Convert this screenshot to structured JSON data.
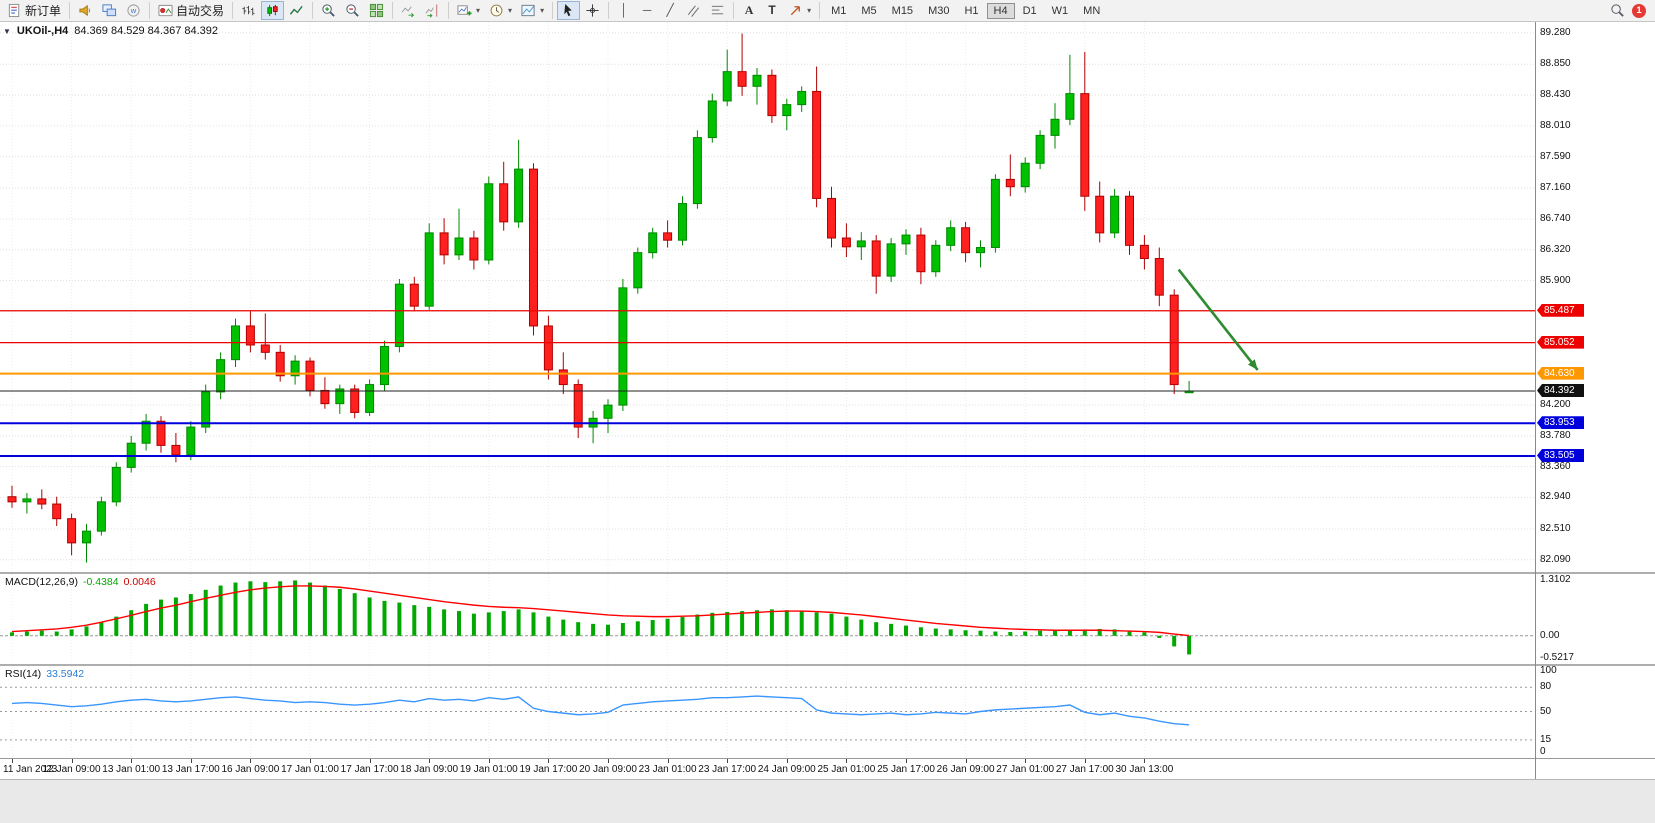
{
  "toolbar": {
    "new_order_label": "新订单",
    "auto_trading_label": "自动交易",
    "timeframes": [
      "M1",
      "M5",
      "M15",
      "M30",
      "H1",
      "H4",
      "D1",
      "W1",
      "MN"
    ],
    "active_timeframe": "H4",
    "notification_count": "1"
  },
  "chart": {
    "symbol_title": "UKOil-,H4",
    "ohlc_text": "84.369 84.529 84.367 84.392",
    "macd_name": "MACD(12,26,9)",
    "macd_value_main": "-0.4384",
    "macd_value_signal": "0.0046",
    "rsi_name": "RSI(14)",
    "rsi_value": "33.5942"
  },
  "chart_data": {
    "type": "candlestick",
    "symbol": "UKOil-",
    "timeframe": "H4",
    "current_bar": {
      "open": 84.369,
      "high": 84.529,
      "low": 84.367,
      "close": 84.392
    },
    "view": {
      "price_max": 89.4,
      "price_min": 81.95
    },
    "colors": {
      "up": "#00c000",
      "up_border": "#008800",
      "down": "#ff2020",
      "down_border": "#b00000",
      "macd_hist": "#00a800",
      "macd_signal": "#ff0000",
      "rsi": "#3a96ff"
    },
    "price_axis_labels": [
      "89.280",
      "88.850",
      "88.430",
      "88.010",
      "87.590",
      "87.160",
      "86.740",
      "86.320",
      "85.900",
      "84.200",
      "83.780",
      "83.360",
      "82.940",
      "82.510",
      "82.090"
    ],
    "price_gridlines": [
      89.28,
      88.85,
      88.43,
      88.01,
      87.59,
      87.16,
      86.74,
      86.32,
      85.9,
      85.48,
      85.05,
      84.63,
      84.2,
      83.78,
      83.36,
      82.94,
      82.51,
      82.09
    ],
    "hlines": [
      {
        "price": 85.487,
        "badge": "85.487",
        "color": "#ee0000",
        "width": 1.2
      },
      {
        "price": 85.052,
        "badge": "85.052",
        "color": "#ee0000",
        "width": 1.2
      },
      {
        "price": 84.63,
        "badge": "84.630",
        "color": "#ff9800",
        "width": 2
      },
      {
        "price": 83.953,
        "badge": "83.953",
        "color": "#0000dd",
        "width": 2
      },
      {
        "price": 83.505,
        "badge": "83.505",
        "color": "#0000dd",
        "width": 2
      }
    ],
    "current_price": 84.392,
    "current_badge": "84.392",
    "arrow": {
      "from_bar": 79.3,
      "from_price": 86.05,
      "to_bar": 84.6,
      "to_price": 84.68,
      "color": "#2e8b2e"
    },
    "time_labels": [
      "11 Jan 2023",
      "12 Jan 09:00",
      "13 Jan 01:00",
      "13 Jan 17:00",
      "16 Jan 09:00",
      "17 Jan 01:00",
      "17 Jan 17:00",
      "18 Jan 09:00",
      "19 Jan 01:00",
      "19 Jan 17:00",
      "20 Jan 09:00",
      "23 Jan 01:00",
      "23 Jan 17:00",
      "24 Jan 09:00",
      "25 Jan 01:00",
      "25 Jan 17:00",
      "26 Jan 09:00",
      "27 Jan 01:00",
      "27 Jan 17:00",
      "30 Jan 13:00"
    ],
    "candles": [
      [
        82.95,
        83.1,
        82.8,
        82.88
      ],
      [
        82.88,
        83.0,
        82.72,
        82.92
      ],
      [
        82.92,
        83.05,
        82.78,
        82.85
      ],
      [
        82.85,
        82.95,
        82.55,
        82.65
      ],
      [
        82.65,
        82.72,
        82.15,
        82.32
      ],
      [
        82.32,
        82.58,
        82.05,
        82.48
      ],
      [
        82.48,
        82.95,
        82.42,
        82.88
      ],
      [
        82.88,
        83.42,
        82.82,
        83.35
      ],
      [
        83.35,
        83.78,
        83.28,
        83.68
      ],
      [
        83.68,
        84.08,
        83.58,
        83.98
      ],
      [
        83.98,
        84.05,
        83.55,
        83.65
      ],
      [
        83.65,
        83.82,
        83.42,
        83.52
      ],
      [
        83.52,
        83.98,
        83.45,
        83.9
      ],
      [
        83.9,
        84.48,
        83.82,
        84.38
      ],
      [
        84.38,
        84.92,
        84.28,
        84.82
      ],
      [
        84.82,
        85.38,
        84.72,
        85.28
      ],
      [
        85.28,
        85.48,
        84.92,
        85.02
      ],
      [
        85.02,
        85.45,
        84.82,
        84.92
      ],
      [
        84.92,
        85.02,
        84.52,
        84.6
      ],
      [
        84.6,
        84.88,
        84.48,
        84.8
      ],
      [
        84.8,
        84.85,
        84.32,
        84.4
      ],
      [
        84.4,
        84.58,
        84.15,
        84.22
      ],
      [
        84.22,
        84.48,
        84.08,
        84.42
      ],
      [
        84.42,
        84.48,
        84.02,
        84.1
      ],
      [
        84.1,
        84.55,
        84.05,
        84.48
      ],
      [
        84.48,
        85.08,
        84.4,
        85.0
      ],
      [
        85.0,
        85.92,
        84.92,
        85.85
      ],
      [
        85.85,
        85.95,
        85.48,
        85.55
      ],
      [
        85.55,
        86.68,
        85.5,
        86.55
      ],
      [
        86.55,
        86.75,
        86.12,
        86.25
      ],
      [
        86.25,
        86.88,
        86.18,
        86.48
      ],
      [
        86.48,
        86.58,
        86.05,
        86.18
      ],
      [
        86.18,
        87.32,
        86.12,
        87.22
      ],
      [
        87.22,
        87.52,
        86.58,
        86.7
      ],
      [
        86.7,
        87.82,
        86.62,
        87.42
      ],
      [
        87.42,
        87.5,
        85.15,
        85.28
      ],
      [
        85.28,
        85.42,
        84.55,
        84.68
      ],
      [
        84.68,
        84.92,
        84.35,
        84.48
      ],
      [
        84.48,
        84.55,
        83.75,
        83.9
      ],
      [
        83.9,
        84.12,
        83.68,
        84.02
      ],
      [
        84.02,
        84.28,
        83.82,
        84.2
      ],
      [
        84.2,
        85.92,
        84.12,
        85.8
      ],
      [
        85.8,
        86.35,
        85.72,
        86.28
      ],
      [
        86.28,
        86.62,
        86.2,
        86.55
      ],
      [
        86.55,
        86.72,
        86.35,
        86.45
      ],
      [
        86.45,
        87.05,
        86.38,
        86.95
      ],
      [
        86.95,
        87.95,
        86.88,
        87.85
      ],
      [
        87.85,
        88.45,
        87.78,
        88.35
      ],
      [
        88.35,
        89.05,
        88.28,
        88.75
      ],
      [
        88.75,
        89.27,
        88.42,
        88.55
      ],
      [
        88.55,
        88.8,
        88.3,
        88.7
      ],
      [
        88.7,
        88.78,
        88.05,
        88.15
      ],
      [
        88.15,
        88.38,
        87.95,
        88.3
      ],
      [
        88.3,
        88.55,
        88.2,
        88.48
      ],
      [
        88.48,
        88.82,
        86.9,
        87.02
      ],
      [
        87.02,
        87.18,
        86.35,
        86.48
      ],
      [
        86.48,
        86.68,
        86.22,
        86.36
      ],
      [
        86.36,
        86.56,
        86.18,
        86.44
      ],
      [
        86.44,
        86.52,
        85.72,
        85.96
      ],
      [
        85.96,
        86.48,
        85.88,
        86.4
      ],
      [
        86.4,
        86.6,
        86.25,
        86.52
      ],
      [
        86.52,
        86.62,
        85.85,
        86.02
      ],
      [
        86.02,
        86.45,
        85.95,
        86.38
      ],
      [
        86.38,
        86.72,
        86.3,
        86.62
      ],
      [
        86.62,
        86.7,
        86.15,
        86.28
      ],
      [
        86.28,
        86.45,
        86.08,
        86.35
      ],
      [
        86.35,
        87.35,
        86.28,
        87.28
      ],
      [
        87.28,
        87.62,
        87.05,
        87.18
      ],
      [
        87.18,
        87.58,
        87.1,
        87.5
      ],
      [
        87.5,
        87.95,
        87.42,
        87.88
      ],
      [
        87.88,
        88.32,
        87.7,
        88.1
      ],
      [
        88.1,
        88.98,
        88.02,
        88.45
      ],
      [
        88.45,
        89.02,
        86.85,
        87.05
      ],
      [
        87.05,
        87.25,
        86.42,
        86.55
      ],
      [
        86.55,
        87.15,
        86.48,
        87.05
      ],
      [
        87.05,
        87.12,
        86.25,
        86.38
      ],
      [
        86.38,
        86.52,
        86.05,
        86.2
      ],
      [
        86.2,
        86.35,
        85.55,
        85.7
      ],
      [
        85.7,
        85.78,
        84.35,
        84.48
      ],
      [
        84.369,
        84.529,
        84.367,
        84.392
      ]
    ],
    "macd": {
      "histogram": [
        0.08,
        0.1,
        0.12,
        0.1,
        0.15,
        0.22,
        0.32,
        0.45,
        0.6,
        0.75,
        0.85,
        0.9,
        0.98,
        1.08,
        1.18,
        1.25,
        1.28,
        1.26,
        1.28,
        1.3,
        1.25,
        1.18,
        1.1,
        1.0,
        0.9,
        0.82,
        0.78,
        0.72,
        0.68,
        0.62,
        0.58,
        0.52,
        0.55,
        0.58,
        0.62,
        0.55,
        0.45,
        0.38,
        0.32,
        0.28,
        0.26,
        0.3,
        0.34,
        0.37,
        0.4,
        0.44,
        0.5,
        0.54,
        0.56,
        0.58,
        0.6,
        0.62,
        0.6,
        0.58,
        0.55,
        0.52,
        0.45,
        0.38,
        0.32,
        0.28,
        0.24,
        0.2,
        0.17,
        0.15,
        0.13,
        0.12,
        0.1,
        0.09,
        0.1,
        0.12,
        0.13,
        0.14,
        0.15,
        0.16,
        0.15,
        0.12,
        0.08,
        -0.05,
        -0.25,
        -0.4384
      ],
      "signal": [
        0.1,
        0.12,
        0.14,
        0.16,
        0.2,
        0.25,
        0.32,
        0.4,
        0.48,
        0.57,
        0.65,
        0.72,
        0.8,
        0.88,
        0.95,
        1.02,
        1.08,
        1.12,
        1.15,
        1.17,
        1.17,
        1.16,
        1.14,
        1.1,
        1.05,
        1.0,
        0.95,
        0.9,
        0.85,
        0.8,
        0.76,
        0.72,
        0.69,
        0.67,
        0.66,
        0.64,
        0.61,
        0.58,
        0.55,
        0.52,
        0.49,
        0.47,
        0.46,
        0.45,
        0.45,
        0.46,
        0.47,
        0.49,
        0.51,
        0.53,
        0.55,
        0.57,
        0.58,
        0.58,
        0.57,
        0.55,
        0.52,
        0.49,
        0.45,
        0.41,
        0.37,
        0.33,
        0.29,
        0.26,
        0.23,
        0.2,
        0.18,
        0.16,
        0.15,
        0.14,
        0.13,
        0.13,
        0.13,
        0.13,
        0.12,
        0.11,
        0.1,
        0.08,
        0.04,
        0.0046
      ],
      "scale": {
        "max": 1.3102,
        "min": -0.5217,
        "labels": [
          "1.3102",
          "0.00",
          "-0.5217"
        ]
      }
    },
    "rsi": {
      "values": [
        60,
        61,
        60,
        58,
        56,
        57,
        59,
        62,
        64,
        65,
        63,
        62,
        63,
        65,
        67,
        68,
        66,
        64,
        63,
        61,
        62,
        61,
        59,
        58,
        59,
        61,
        64,
        62,
        66,
        64,
        65,
        63,
        67,
        65,
        68,
        54,
        50,
        48,
        46,
        47,
        49,
        58,
        60,
        62,
        63,
        64,
        65,
        67,
        67,
        68,
        69,
        68,
        67,
        66,
        52,
        48,
        47,
        46,
        47,
        48,
        46,
        47,
        49,
        48,
        47,
        50,
        52,
        53,
        54,
        55,
        56,
        58,
        49,
        46,
        48,
        44,
        42,
        38,
        35,
        33.59
      ],
      "levels": [
        80,
        50,
        15
      ],
      "scale_labels": [
        "100",
        "80",
        "50",
        "15",
        "0"
      ]
    }
  }
}
